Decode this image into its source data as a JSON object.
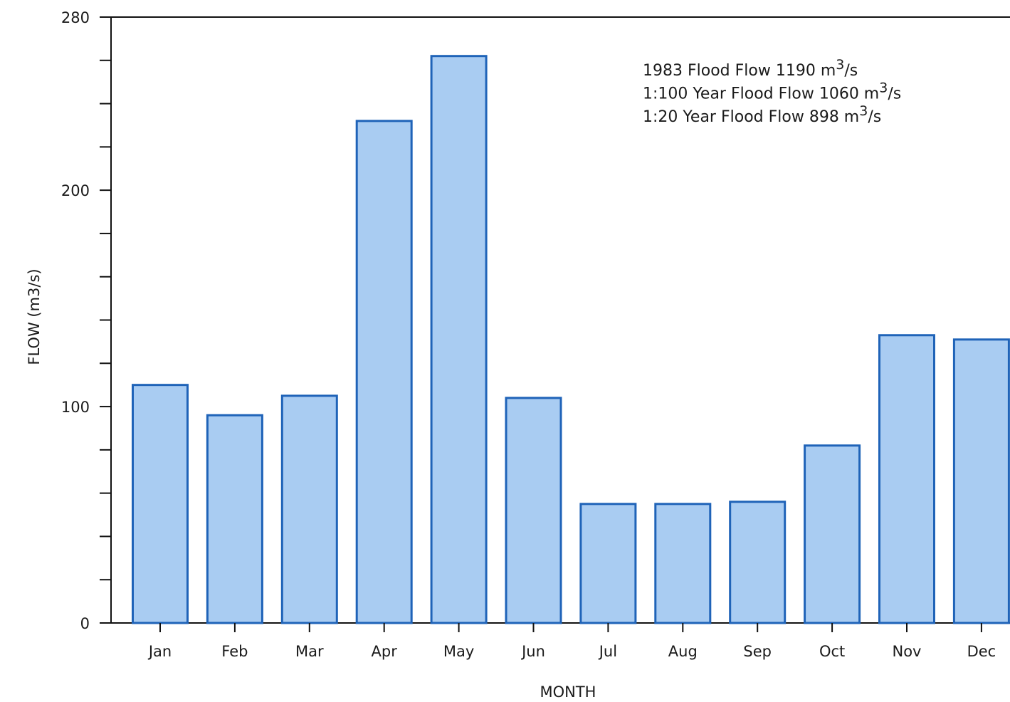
{
  "chart_data": {
    "type": "bar",
    "categories": [
      "Jan",
      "Feb",
      "Mar",
      "Apr",
      "May",
      "Jun",
      "Jul",
      "Aug",
      "Sep",
      "Oct",
      "Nov",
      "Dec"
    ],
    "values": [
      110,
      96,
      105,
      232,
      262,
      104,
      55,
      55,
      56,
      82,
      133,
      131
    ],
    "xlabel": "MONTH",
    "ylabel": "FLOW (m3/s)",
    "ylim": [
      0,
      280
    ],
    "yticks": [
      "0",
      "100",
      "200",
      "280"
    ],
    "grid": false,
    "legend": null,
    "annotations": [
      {
        "text": "1983 Flood Flow 1190 m",
        "sup": "3",
        "tail": "/s"
      },
      {
        "text": "1:100 Year Flood Flow 1060 m",
        "sup": "3",
        "tail": "/s"
      },
      {
        "text": "1:20 Year Flood Flow 898 m",
        "sup": "3",
        "tail": "/s"
      }
    ],
    "colors": {
      "bar_fill": "#a9ccf2",
      "bar_stroke": "#1f63b8",
      "axis": "#111111"
    }
  }
}
